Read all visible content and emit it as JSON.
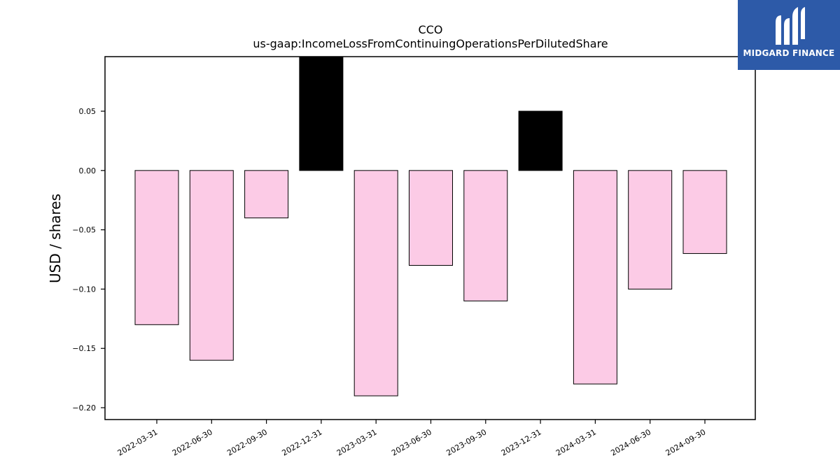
{
  "chart_data": {
    "type": "bar",
    "title": "CCO",
    "subtitle": "us-gaap:IncomeLossFromContinuingOperationsPerDilutedShare",
    "xlabel": "",
    "ylabel": "USD / shares",
    "categories": [
      "2022-03-31",
      "2022-06-30",
      "2022-09-30",
      "2022-12-31",
      "2023-03-31",
      "2023-06-30",
      "2023-09-30",
      "2023-12-31",
      "2024-03-31",
      "2024-06-30",
      "2024-09-30"
    ],
    "values": [
      -0.13,
      -0.16,
      -0.04,
      0.1,
      -0.19,
      -0.08,
      -0.11,
      0.05,
      -0.18,
      -0.1,
      -0.07
    ],
    "ylim": [
      -0.21,
      0.096
    ],
    "yticks": [
      "0.05",
      "0.00",
      "−0.05",
      "−0.10",
      "−0.15",
      "−0.20"
    ],
    "grid": false,
    "colors": {
      "negative": "#fccbe6",
      "positive": "#000000",
      "edge": "#000000"
    }
  },
  "logo": {
    "text": "MIDGARD FINANCE",
    "icon": "midgard-m-icon",
    "background": "#2d5aa8"
  }
}
